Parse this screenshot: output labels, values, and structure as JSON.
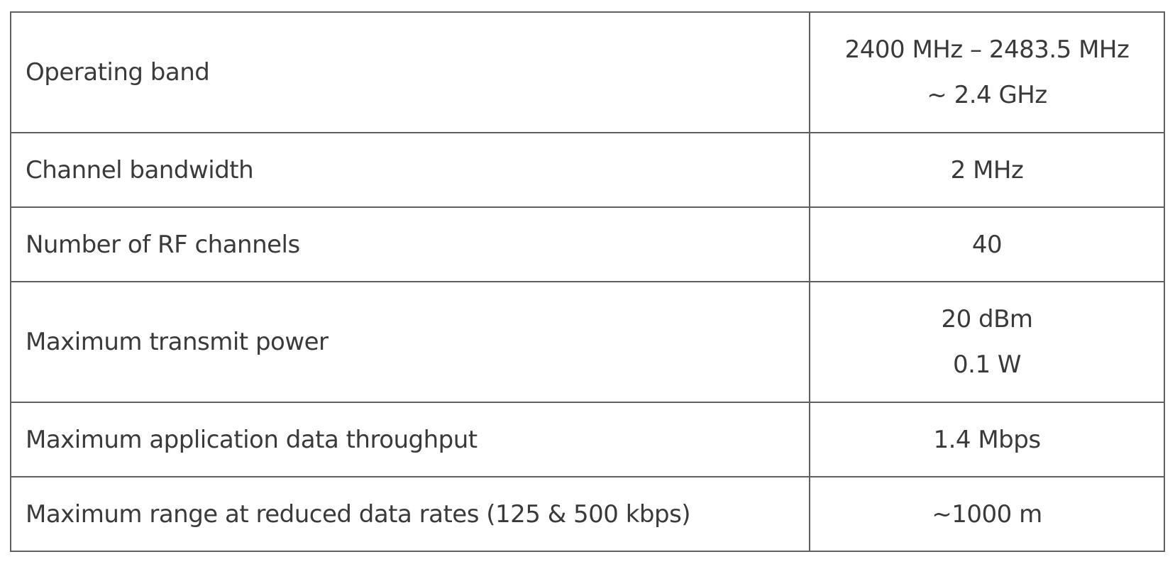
{
  "table": {
    "rows": [
      {
        "label": "Operating band",
        "values": [
          "2400 MHz – 2483.5 MHz",
          "~ 2.4 GHz"
        ]
      },
      {
        "label": "Channel bandwidth",
        "values": [
          "2 MHz"
        ]
      },
      {
        "label": "Number of RF channels",
        "values": [
          "40"
        ]
      },
      {
        "label": "Maximum transmit power",
        "values": [
          "20 dBm",
          "0.1 W"
        ]
      },
      {
        "label": "Maximum application data throughput",
        "values": [
          "1.4 Mbps"
        ]
      },
      {
        "label": "Maximum range at reduced data rates (125 & 500 kbps)",
        "values": [
          "~1000 m"
        ]
      }
    ]
  }
}
